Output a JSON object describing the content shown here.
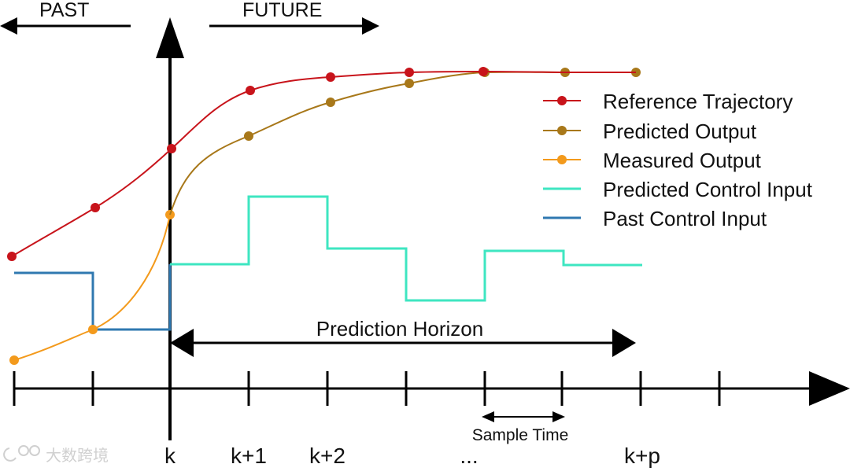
{
  "labels": {
    "past": "PAST",
    "future": "FUTURE",
    "prediction_horizon": "Prediction Horizon",
    "sample_time": "Sample Time",
    "watermark": "大数跨境"
  },
  "time_ticks": [
    "k",
    "k+1",
    "k+2",
    "...",
    "k+p"
  ],
  "legend": [
    {
      "label": "Reference Trajectory",
      "color": "#c8141b",
      "marker": true
    },
    {
      "label": "Predicted Output",
      "color": "#a8781a",
      "marker": true
    },
    {
      "label": "Measured Output",
      "color": "#f39a1c",
      "marker": true
    },
    {
      "label": "Predicted Control Input",
      "color": "#3ee6c1",
      "marker": false
    },
    {
      "label": "Past Control Input",
      "color": "#2f78b0",
      "marker": false
    }
  ],
  "colors": {
    "axis": "#000000",
    "reference": "#c8141b",
    "predicted_output": "#a8781a",
    "measured_output": "#f39a1c",
    "predicted_control": "#3ee6c1",
    "past_control": "#2f78b0"
  }
}
